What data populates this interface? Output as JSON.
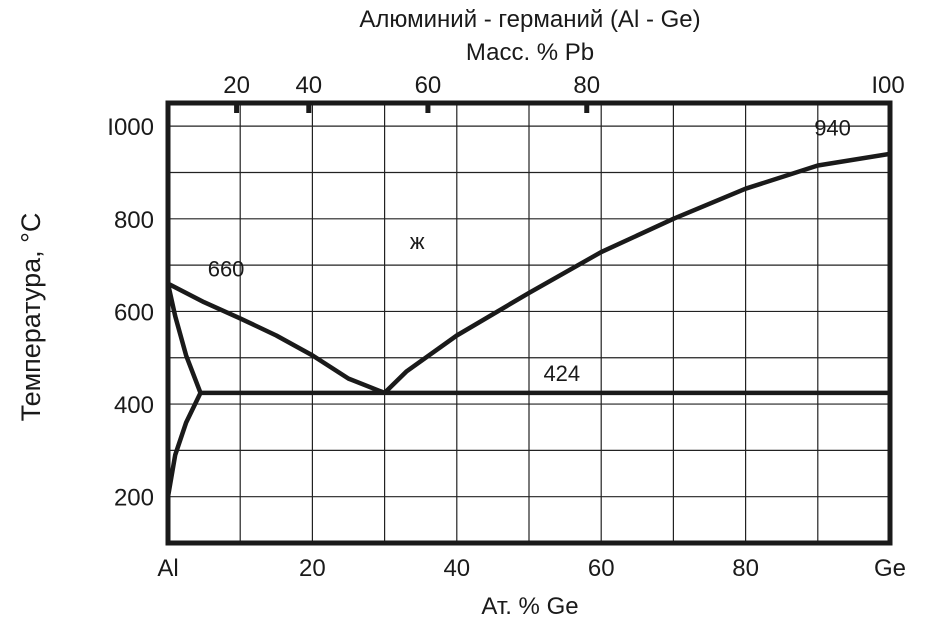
{
  "chart_data": {
    "type": "line",
    "title": "Алюминий - германий (Al - Ge)",
    "subtitle": "Масс. % Pb",
    "xlabel": "Ат. % Ge",
    "ylabel": "Температура,  °C",
    "xlim": [
      0,
      100
    ],
    "ylim": [
      100,
      1050
    ],
    "grid": true,
    "x_tick_labels": [
      "Al",
      "20",
      "40",
      "60",
      "80",
      "Ge"
    ],
    "x_ticks": [
      0,
      20,
      40,
      60,
      80,
      100
    ],
    "y_tick_labels": [
      "200",
      "400",
      "600",
      "800",
      "I000"
    ],
    "y_ticks": [
      200,
      400,
      600,
      800,
      1000
    ],
    "top_axis": {
      "tick_labels": [
        "20",
        "40",
        "60",
        "80",
        "I00"
      ],
      "at_percent": [
        9.5,
        19.5,
        36,
        58,
        100
      ]
    },
    "series": [
      {
        "points": [
          [
            0,
            660
          ],
          [
            5,
            620
          ],
          [
            10,
            585
          ],
          [
            15,
            548
          ],
          [
            20,
            505
          ],
          [
            25,
            455
          ],
          [
            30,
            424
          ]
        ]
      },
      {
        "points": [
          [
            30,
            424
          ],
          [
            33,
            470
          ],
          [
            40,
            548
          ],
          [
            50,
            640
          ],
          [
            60,
            728
          ],
          [
            70,
            800
          ],
          [
            80,
            865
          ],
          [
            90,
            915
          ],
          [
            100,
            940
          ]
        ]
      },
      {
        "points": [
          [
            0,
            660
          ],
          [
            1,
            590
          ],
          [
            2.5,
            505
          ],
          [
            4.5,
            424
          ]
        ]
      },
      {
        "points": [
          [
            4.5,
            424
          ],
          [
            2.5,
            360
          ],
          [
            1,
            290
          ],
          [
            0,
            200
          ]
        ]
      },
      {
        "points": [
          [
            4.5,
            424
          ],
          [
            100,
            424
          ]
        ]
      }
    ],
    "annotations": [
      {
        "text": "660",
        "x": 5.5,
        "y": 675
      },
      {
        "text": "ж",
        "x": 33.5,
        "y": 735
      },
      {
        "text": "424",
        "x": 52,
        "y": 450
      },
      {
        "text": "940",
        "x": 89.5,
        "y": 980
      }
    ]
  }
}
